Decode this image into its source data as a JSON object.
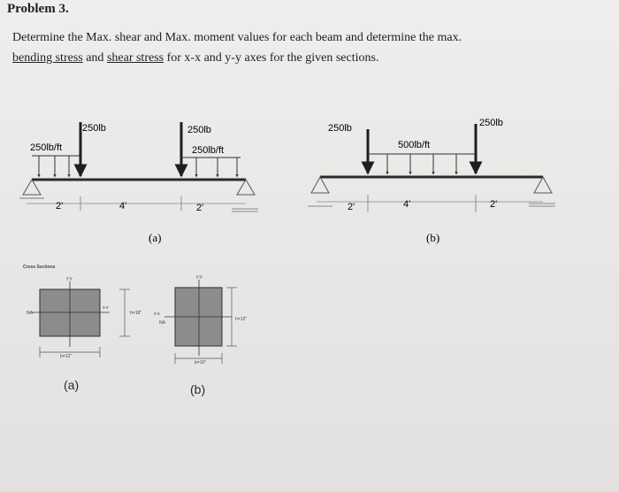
{
  "problem": {
    "title": "Problem 3.",
    "line1": "Determine the Max. shear and Max. moment values for each beam and determine the max.",
    "line2_part1": "bending stress",
    "line2_part2": " and ",
    "line2_part3": "shear stress",
    "line2_part4": " for x-x and y-y axes for the given sections."
  },
  "beam_a": {
    "load_left_point": "250lb",
    "load_right_point": "250lb",
    "dist_left": "250lb/ft",
    "dist_right": "250lb/ft",
    "span_1": "2'",
    "span_2": "4'",
    "span_3": "2'",
    "caption": "(a)"
  },
  "beam_b": {
    "load_left_point": "250lb",
    "load_right_point": "250lb",
    "dist_middle": "500lb/ft",
    "span_1": "2'",
    "span_2": "4'",
    "span_3": "2'",
    "caption": "(b)"
  },
  "sections": {
    "heading": "Cross Sections",
    "a": {
      "yy": "y-y",
      "xx": "x-x",
      "na": "NA",
      "width": "b=12\"",
      "height": "h=18\"",
      "caption": "(a)"
    },
    "b": {
      "yy": "y-y",
      "xx": "x-x",
      "na": "NA",
      "width": "b=10\"",
      "height": "h=12\"",
      "caption": "(b)"
    }
  }
}
